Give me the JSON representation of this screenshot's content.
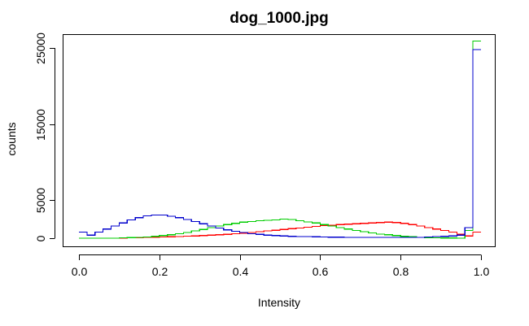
{
  "chart_data": {
    "type": "line",
    "title": "dog_1000.jpg",
    "xlabel": "Intensity",
    "ylabel": "counts",
    "xlim": [
      0,
      1
    ],
    "ylim": [
      0,
      26000
    ],
    "x_ticks": [
      0.0,
      0.2,
      0.4,
      0.6,
      0.8,
      1.0
    ],
    "x_tick_labels": [
      "0.0",
      "0.2",
      "0.4",
      "0.6",
      "0.8",
      "1.0"
    ],
    "y_ticks": [
      0,
      5000,
      15000,
      25000
    ],
    "y_tick_labels": [
      "0",
      "5000",
      "15000",
      "25000"
    ],
    "grid": false,
    "legend": "none",
    "bin_edges": [
      0.0,
      0.02,
      0.04,
      0.06,
      0.08,
      0.1,
      0.12,
      0.14,
      0.16,
      0.18,
      0.2,
      0.22,
      0.24,
      0.26,
      0.28,
      0.3,
      0.32,
      0.34,
      0.36,
      0.38,
      0.4,
      0.42,
      0.44,
      0.46,
      0.48,
      0.5,
      0.52,
      0.54,
      0.56,
      0.58,
      0.6,
      0.62,
      0.64,
      0.66,
      0.68,
      0.7,
      0.72,
      0.74,
      0.76,
      0.78,
      0.8,
      0.82,
      0.84,
      0.86,
      0.88,
      0.9,
      0.92,
      0.94,
      0.96,
      0.98,
      1.0
    ],
    "series": [
      {
        "color": "#ff0000",
        "values": [
          0,
          0,
          0,
          0,
          0,
          0,
          50,
          80,
          100,
          120,
          150,
          180,
          220,
          260,
          300,
          350,
          400,
          450,
          500,
          580,
          650,
          750,
          850,
          950,
          1050,
          1150,
          1250,
          1350,
          1450,
          1550,
          1650,
          1700,
          1800,
          1850,
          1900,
          1950,
          2000,
          2050,
          2100,
          2050,
          1950,
          1800,
          1600,
          1400,
          1200,
          1000,
          800,
          500,
          300,
          800
        ]
      },
      {
        "color": "#00cc00",
        "values": [
          0,
          0,
          0,
          0,
          0,
          50,
          80,
          100,
          150,
          250,
          350,
          450,
          600,
          750,
          950,
          1150,
          1400,
          1600,
          1800,
          1950,
          2100,
          2200,
          2300,
          2350,
          2400,
          2500,
          2450,
          2300,
          2150,
          2000,
          1800,
          1600,
          1400,
          1200,
          1000,
          850,
          700,
          550,
          450,
          350,
          250,
          180,
          120,
          80,
          50,
          30,
          20,
          10,
          1000,
          25900
        ]
      },
      {
        "color": "#0000cc",
        "values": [
          800,
          400,
          800,
          1200,
          1600,
          2000,
          2400,
          2700,
          2950,
          3050,
          3050,
          2900,
          2700,
          2450,
          2200,
          1900,
          1600,
          1350,
          1100,
          900,
          750,
          600,
          500,
          400,
          350,
          300,
          250,
          220,
          200,
          180,
          160,
          140,
          130,
          120,
          110,
          100,
          100,
          100,
          100,
          100,
          100,
          100,
          100,
          150,
          200,
          250,
          300,
          400,
          1400,
          24800
        ]
      }
    ]
  }
}
